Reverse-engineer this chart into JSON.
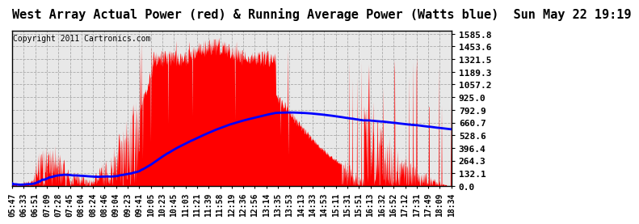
{
  "title": "West Array Actual Power (red) & Running Average Power (Watts blue)  Sun May 22 19:19",
  "copyright": "Copyright 2011 Cartronics.com",
  "bg_color": "#ffffff",
  "plot_bg_color": "#e8e8e8",
  "grid_color": "#aaaaaa",
  "actual_color": "#ff0000",
  "avg_color": "#0000ff",
  "ymin": 0.0,
  "ymax": 1585.8,
  "yticks": [
    0.0,
    132.1,
    264.3,
    396.4,
    528.6,
    660.7,
    792.9,
    925.0,
    1057.2,
    1189.3,
    1321.5,
    1453.6,
    1585.8
  ],
  "xtick_labels": [
    "05:47",
    "06:33",
    "06:51",
    "07:09",
    "07:28",
    "07:45",
    "08:04",
    "08:24",
    "08:46",
    "09:04",
    "09:23",
    "09:41",
    "10:05",
    "10:23",
    "10:45",
    "11:03",
    "11:21",
    "11:39",
    "11:58",
    "12:19",
    "12:36",
    "12:56",
    "13:14",
    "13:35",
    "13:53",
    "14:13",
    "14:33",
    "14:53",
    "15:11",
    "15:31",
    "15:51",
    "16:13",
    "16:32",
    "16:52",
    "17:12",
    "17:31",
    "17:49",
    "18:09",
    "18:34"
  ],
  "title_fontsize": 11,
  "copyright_fontsize": 7,
  "axis_fontsize": 7,
  "ytick_fontsize": 8
}
